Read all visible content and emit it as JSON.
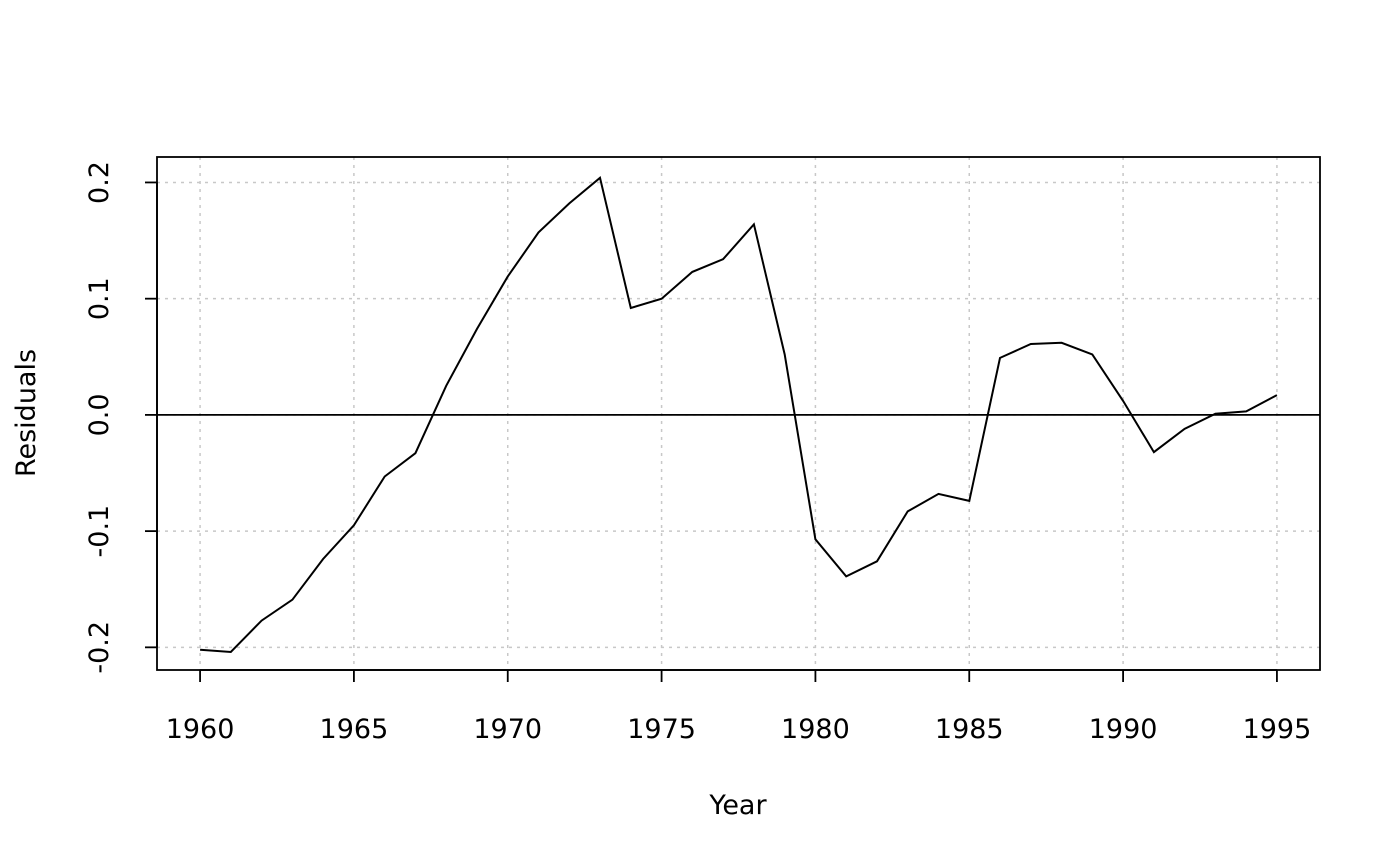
{
  "chart_data": {
    "type": "line",
    "title": "",
    "xlabel": "Year",
    "ylabel": "Residuals",
    "xlim": [
      1958.6,
      1996.4
    ],
    "ylim": [
      -0.2195,
      0.2219
    ],
    "x_ticks": [
      1960,
      1965,
      1970,
      1975,
      1980,
      1985,
      1990,
      1995
    ],
    "y_ticks": [
      -0.2,
      -0.1,
      0.0,
      0.1,
      0.2
    ],
    "y_tick_labels": [
      "-0.2",
      "-0.1",
      "0.0",
      "0.1",
      "0.2"
    ],
    "grid": true,
    "reference_line": 0,
    "line_color": "#000000",
    "grid_color": "#c8c8c8",
    "series": [
      {
        "x": [
          1960,
          1961,
          1962,
          1963,
          1964,
          1965,
          1966,
          1967,
          1968,
          1969,
          1970,
          1971,
          1972,
          1973,
          1974,
          1975,
          1976,
          1977,
          1978,
          1979,
          1980,
          1981,
          1982,
          1983,
          1984,
          1985,
          1986,
          1987,
          1988,
          1989,
          1990,
          1991,
          1992,
          1993,
          1994,
          1995
        ],
        "values": [
          -0.202,
          -0.204,
          -0.177,
          -0.159,
          -0.124,
          -0.095,
          -0.053,
          -0.033,
          0.025,
          0.074,
          0.119,
          0.157,
          0.182,
          0.204,
          0.092,
          0.1,
          0.123,
          0.134,
          0.164,
          0.052,
          -0.107,
          -0.139,
          -0.126,
          -0.083,
          -0.068,
          -0.074,
          0.049,
          0.061,
          0.062,
          0.052,
          0.012,
          -0.032,
          -0.012,
          0.001,
          0.003,
          0.017
        ]
      }
    ]
  }
}
